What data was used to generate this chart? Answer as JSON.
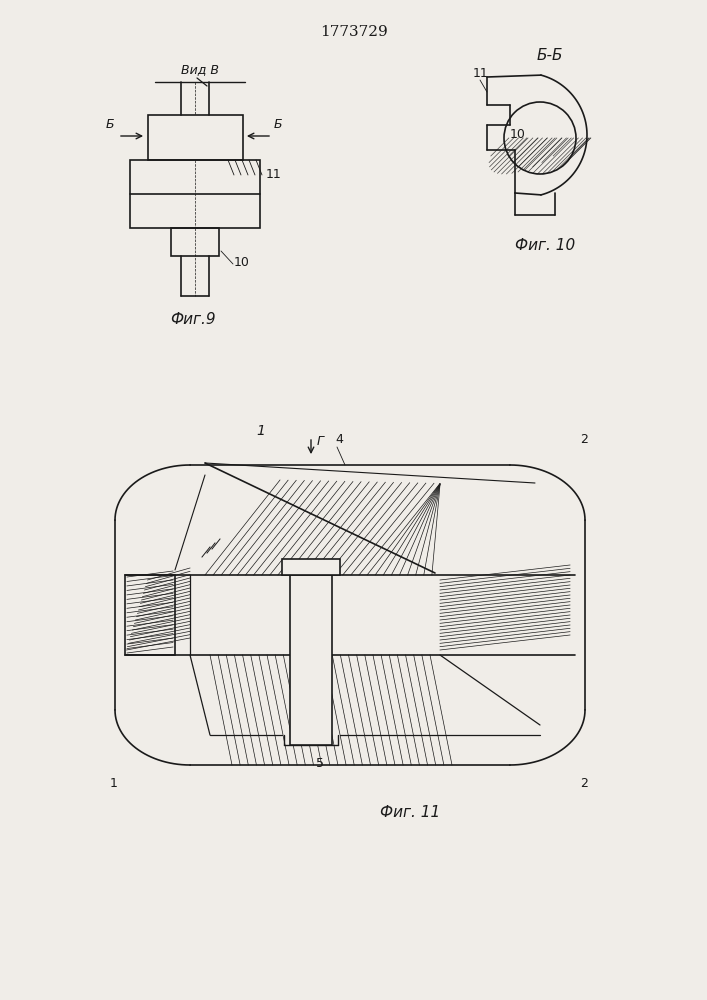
{
  "title": "1773729",
  "fig9_label": "Фиг.9",
  "fig10_label": "Фиг. 10",
  "fig11_label": "Фиг. 11",
  "vid_b_label": "Вид В",
  "bb_label": "Б-Б",
  "line_color": "#1a1a1a",
  "bg_color": "#f0ede8",
  "hatch_color": "#1a1a1a"
}
